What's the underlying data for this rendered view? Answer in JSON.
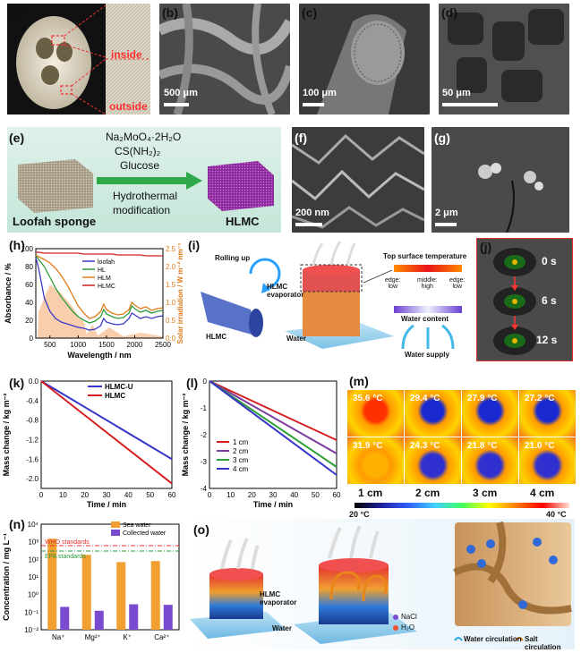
{
  "panel_labels": {
    "a": "(a)",
    "b": "(b)",
    "c": "(c)",
    "d": "(d)",
    "e": "(e)",
    "f": "(f)",
    "g": "(g)",
    "h": "(h)",
    "i": "(i)",
    "j": "(j)",
    "k": "(k)",
    "l": "(l)",
    "m": "(m)",
    "n": "(n)",
    "o": "(o)"
  },
  "a": {
    "inside": "inside",
    "outside": "outside"
  },
  "scales": {
    "b": "500 μm",
    "c": "100 μm",
    "d": "50 μm",
    "f": "200 nm",
    "g": "2 μm"
  },
  "e": {
    "reagent1": "Na₂MoO₄·2H₂O",
    "reagent2": "CS(NH₂)₂",
    "reagent3": "Glucose",
    "process1": "Hydrothermal",
    "process2": "modification",
    "left": "Loofah sponge",
    "right": "HLMC"
  },
  "h": {
    "ylabel_left": "Absorbance / %",
    "ylabel_right": "Solar irradiation / W m⁻² nm⁻¹",
    "xlabel": "Wavelength / nm",
    "legend": [
      "loofah",
      "HL",
      "HLM",
      "HLMC"
    ],
    "xticks": [
      "500",
      "1000",
      "1500",
      "2000",
      "2500"
    ],
    "yticks_left": [
      "0",
      "20",
      "40",
      "60",
      "80",
      "100"
    ],
    "yticks_right": [
      "0.0",
      "0.5",
      "1.0",
      "1.5",
      "2.0",
      "2.5"
    ]
  },
  "i": {
    "rolling": "Rolling up",
    "evaporator": "HLMC\nevaporator",
    "hlmc": "HLMC",
    "water": "Water",
    "top_temp": "Top surface temperature",
    "edge_low": "edge:\nlow",
    "middle_high": "middle:\nhigh",
    "edge_low2": "edge:\nlow",
    "water_content": "Water content",
    "water_supply": "Water supply"
  },
  "j": {
    "t0": "0 s",
    "t6": "6 s",
    "t12": "12 s"
  },
  "k": {
    "ylabel": "Mass change / kg m⁻²",
    "xlabel": "Time / min",
    "legend": [
      "HLMC-U",
      "HLMC"
    ],
    "xticks": [
      "0",
      "10",
      "20",
      "30",
      "40",
      "50",
      "60"
    ],
    "yticks": [
      "0.0",
      "-0.4",
      "-0.8",
      "-1.2",
      "-1.6",
      "-2.0"
    ]
  },
  "l": {
    "ylabel": "Mass change / kg m⁻²",
    "xlabel": "Time / min",
    "legend": [
      "1 cm",
      "2 cm",
      "3 cm",
      "4 cm"
    ],
    "xticks": [
      "0",
      "10",
      "20",
      "30",
      "40",
      "50",
      "60"
    ],
    "yticks": [
      "0",
      "-1",
      "-2",
      "-3",
      "-4"
    ]
  },
  "m": {
    "top": [
      "35.6 °C",
      "29.4 °C",
      "27.9 °C",
      "27.2 °C"
    ],
    "bottom": [
      "31.9 °C",
      "24.3 °C",
      "21.8 °C",
      "21.0 °C"
    ],
    "cols": [
      "1 cm",
      "2 cm",
      "3 cm",
      "4 cm"
    ],
    "cmin": "20 °C",
    "cmax": "40 °C"
  },
  "n": {
    "ylabel": "Concentration / mg L⁻¹",
    "legend": [
      "Sea water",
      "Collected water"
    ],
    "who": "WHO standards",
    "epa": "EPA standards",
    "categories": [
      "Na⁺",
      "Mg²⁺",
      "K⁺",
      "Ca²⁺"
    ],
    "yticks": [
      "10⁴",
      "10³",
      "10²",
      "10¹",
      "10⁰",
      "10⁻¹",
      "10⁻²"
    ]
  },
  "o": {
    "evaporator": "HLMC\nevaporator",
    "water": "Water",
    "nacl": "NaCl",
    "h2o": "H₂O",
    "water_circ": "Water circulation",
    "salt_circ": "Salt circulation"
  },
  "colors": {
    "loofah": "#3a3ac8",
    "HL": "#2e9e3a",
    "HLM": "#e07a1a",
    "HLMC": "#d42020",
    "solar": "#f7c9a4",
    "blue": "#3535c8",
    "red": "#d42020",
    "green": "#2e9e3a",
    "purple": "#7a3aa0",
    "orange": "#f0a030",
    "violet": "#7a4ad0"
  },
  "chart_data": [
    {
      "panel": "h",
      "type": "line",
      "title": "",
      "xlabel": "Wavelength / nm",
      "ylabel": "Absorbance / %",
      "xlim": [
        250,
        2500
      ],
      "ylim": [
        0,
        100
      ],
      "x": [
        250,
        300,
        400,
        500,
        600,
        700,
        800,
        900,
        1000,
        1100,
        1200,
        1300,
        1400,
        1450,
        1500,
        1600,
        1700,
        1800,
        1900,
        1950,
        2000,
        2100,
        2200,
        2300,
        2400,
        2500
      ],
      "series": [
        {
          "name": "loofah",
          "values": [
            90,
            78,
            45,
            30,
            22,
            18,
            16,
            14,
            12,
            11,
            9,
            10,
            14,
            22,
            18,
            16,
            15,
            16,
            22,
            28,
            26,
            22,
            24,
            22,
            24,
            25
          ]
        },
        {
          "name": "HL",
          "values": [
            92,
            88,
            80,
            68,
            56,
            46,
            38,
            30,
            24,
            20,
            17,
            19,
            24,
            32,
            27,
            24,
            22,
            23,
            28,
            36,
            33,
            29,
            31,
            28,
            30,
            31
          ]
        },
        {
          "name": "HLM",
          "values": [
            93,
            91,
            88,
            84,
            78,
            70,
            60,
            48,
            36,
            28,
            22,
            24,
            30,
            38,
            32,
            28,
            26,
            27,
            32,
            40,
            37,
            33,
            35,
            31,
            33,
            34
          ]
        },
        {
          "name": "HLMC",
          "values": [
            96,
            96,
            95,
            95,
            95,
            95,
            95,
            95,
            95,
            94,
            94,
            94,
            94,
            94,
            94,
            94,
            93,
            93,
            93,
            93,
            93,
            93,
            92,
            92,
            92,
            92
          ]
        }
      ]
    },
    {
      "panel": "k",
      "type": "line",
      "xlabel": "Time / min",
      "ylabel": "Mass change / kg m⁻²",
      "xlim": [
        0,
        60
      ],
      "ylim": [
        -2.2,
        0
      ],
      "x": [
        0,
        60
      ],
      "series": [
        {
          "name": "HLMC-U",
          "values": [
            0,
            -1.6
          ]
        },
        {
          "name": "HLMC",
          "values": [
            0,
            -2.1
          ]
        }
      ]
    },
    {
      "panel": "l",
      "type": "line",
      "xlabel": "Time / min",
      "ylabel": "Mass change / kg m⁻²",
      "xlim": [
        0,
        60
      ],
      "ylim": [
        -4,
        0
      ],
      "x": [
        0,
        60
      ],
      "series": [
        {
          "name": "1 cm",
          "values": [
            0,
            -2.2
          ]
        },
        {
          "name": "2 cm",
          "values": [
            0,
            -2.7
          ]
        },
        {
          "name": "3 cm",
          "values": [
            0,
            -3.2
          ]
        },
        {
          "name": "4 cm",
          "values": [
            0,
            -3.5
          ]
        }
      ]
    },
    {
      "panel": "n",
      "type": "bar",
      "ylabel": "Concentration / mg L⁻¹",
      "yscale": "log",
      "ylim": [
        0.01,
        10000
      ],
      "categories": [
        "Na⁺",
        "Mg²⁺",
        "K⁺",
        "Ca²⁺"
      ],
      "series": [
        {
          "name": "Sea water",
          "values": [
            1500,
            180,
            70,
            80
          ]
        },
        {
          "name": "Collected water",
          "values": [
            0.2,
            0.12,
            0.28,
            0.26
          ]
        }
      ],
      "reference_lines": [
        {
          "name": "WHO standards",
          "value": 600
        },
        {
          "name": "EPA standards",
          "value": 300
        }
      ]
    }
  ]
}
